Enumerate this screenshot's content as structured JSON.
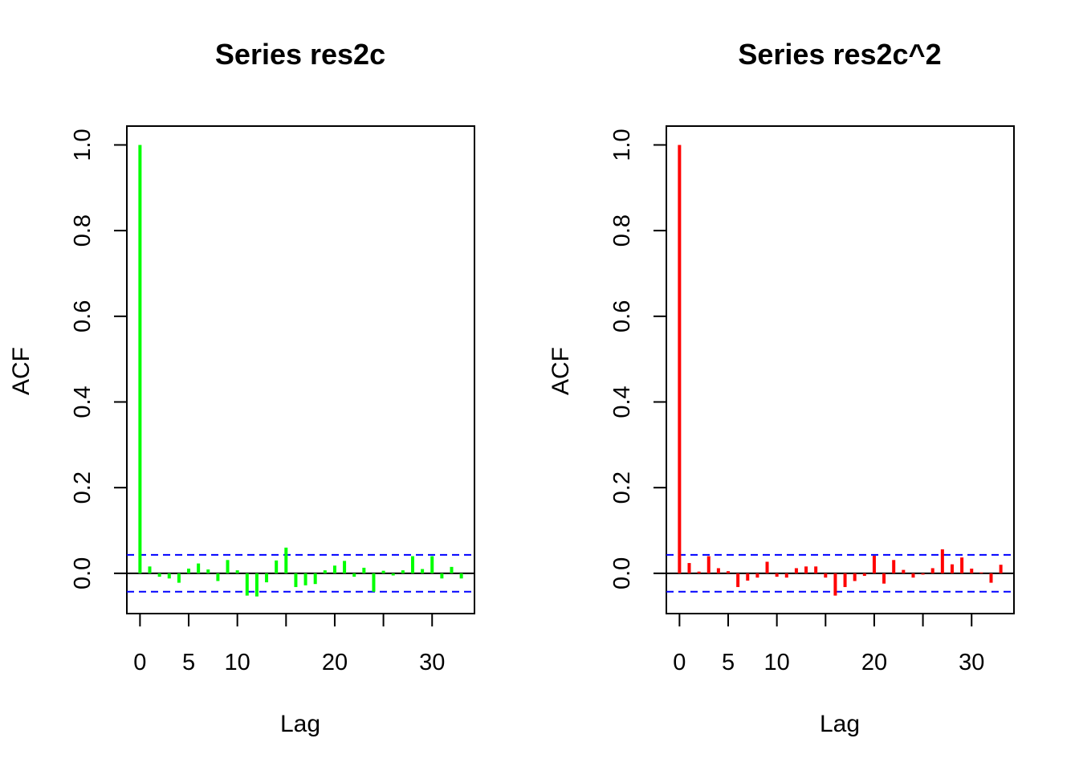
{
  "chart_data": [
    {
      "type": "bar",
      "title": "Series  res2c",
      "xlabel": "Lag",
      "ylabel": "ACF",
      "xlim": [
        -1.35,
        34.35
      ],
      "ylim": [
        -0.094,
        1.044
      ],
      "x_ticks": [
        0,
        5,
        10,
        15,
        20,
        25,
        30
      ],
      "x_tick_labels": [
        "0",
        "5",
        "10",
        "",
        "20",
        "",
        "30"
      ],
      "y_ticks": [
        0.0,
        0.2,
        0.4,
        0.6,
        0.8,
        1.0
      ],
      "y_tick_labels": [
        "0.0",
        "0.2",
        "0.4",
        "0.6",
        "0.8",
        "1.0"
      ],
      "bar_color": "#00ff00",
      "ci_color": "#0000ff",
      "ci_bounds": [
        0.043,
        -0.043
      ],
      "x": [
        0,
        1,
        2,
        3,
        4,
        5,
        6,
        7,
        8,
        9,
        10,
        11,
        12,
        13,
        14,
        15,
        16,
        17,
        18,
        19,
        20,
        21,
        22,
        23,
        24,
        25,
        26,
        27,
        28,
        29,
        30,
        31,
        32,
        33
      ],
      "values": [
        1.0,
        0.016,
        -0.008,
        -0.012,
        -0.022,
        0.011,
        0.023,
        0.009,
        -0.018,
        0.031,
        0.007,
        -0.052,
        -0.054,
        -0.021,
        0.03,
        0.06,
        -0.032,
        -0.028,
        -0.025,
        0.007,
        0.018,
        0.029,
        -0.008,
        0.013,
        -0.043,
        0.006,
        -0.005,
        0.007,
        0.04,
        0.01,
        0.04,
        -0.012,
        0.015,
        -0.012
      ]
    },
    {
      "type": "bar",
      "title": "Series  res2c^2",
      "xlabel": "Lag",
      "ylabel": "ACF",
      "xlim": [
        -1.35,
        34.35
      ],
      "ylim": [
        -0.094,
        1.044
      ],
      "x_ticks": [
        0,
        5,
        10,
        15,
        20,
        25,
        30
      ],
      "x_tick_labels": [
        "0",
        "5",
        "10",
        "",
        "20",
        "",
        "30"
      ],
      "y_ticks": [
        0.0,
        0.2,
        0.4,
        0.6,
        0.8,
        1.0
      ],
      "y_tick_labels": [
        "0.0",
        "0.2",
        "0.4",
        "0.6",
        "0.8",
        "1.0"
      ],
      "bar_color": "#ff0000",
      "ci_color": "#0000ff",
      "ci_bounds": [
        0.043,
        -0.043
      ],
      "x": [
        0,
        1,
        2,
        3,
        4,
        5,
        6,
        7,
        8,
        9,
        10,
        11,
        12,
        13,
        14,
        15,
        16,
        17,
        18,
        19,
        20,
        21,
        22,
        23,
        24,
        25,
        26,
        27,
        28,
        29,
        30,
        31,
        32,
        33
      ],
      "values": [
        1.0,
        0.024,
        0.004,
        0.04,
        0.012,
        0.005,
        -0.032,
        -0.017,
        -0.01,
        0.027,
        -0.008,
        -0.01,
        0.012,
        0.016,
        0.016,
        -0.01,
        -0.052,
        -0.032,
        -0.018,
        -0.006,
        0.041,
        -0.024,
        0.031,
        0.008,
        -0.01,
        -0.003,
        0.012,
        0.056,
        0.021,
        0.037,
        0.011,
        0.002,
        -0.022,
        0.02
      ]
    }
  ]
}
